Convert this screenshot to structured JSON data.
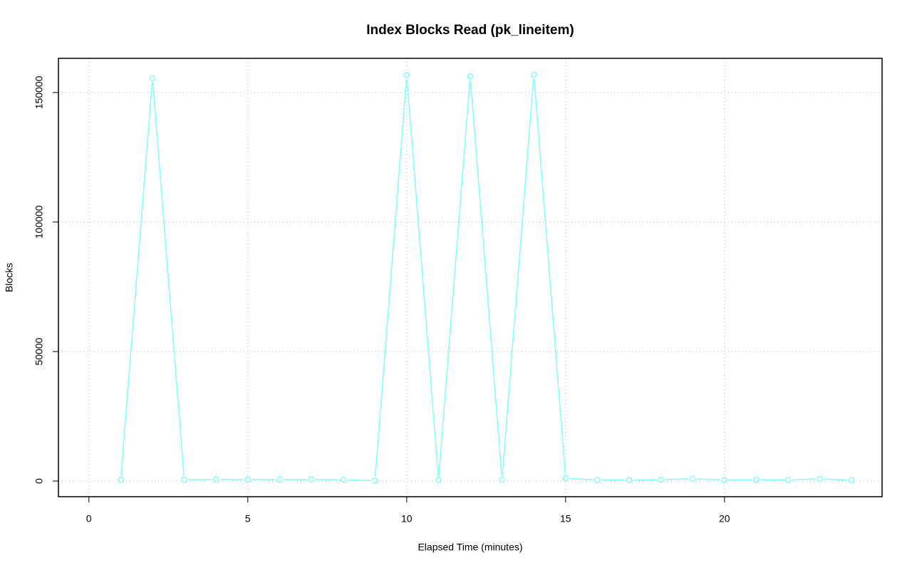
{
  "chart_data": {
    "type": "line",
    "title": "Index Blocks Read (pk_lineitem)",
    "x_label": "Elapsed Time (minutes)",
    "y_label": "Blocks",
    "x": [
      1,
      2,
      3,
      4,
      5,
      6,
      7,
      8,
      9,
      10,
      11,
      12,
      13,
      14,
      15,
      16,
      17,
      18,
      19,
      20,
      21,
      22,
      23,
      24
    ],
    "series": [
      {
        "color": "#80ffff",
        "values": [
          500,
          155500,
          500,
          600,
          600,
          600,
          600,
          500,
          100,
          156600,
          500,
          156300,
          500,
          156900,
          1100,
          400,
          400,
          500,
          900,
          400,
          500,
          400,
          900,
          300
        ]
      }
    ],
    "xlim": [
      -0.96,
      24.96
    ],
    "ylim": [
      -6044,
      163187
    ],
    "xticks": [
      0,
      5,
      10,
      15,
      20
    ],
    "yticks": [
      0,
      50000,
      100000,
      150000
    ],
    "grid": true
  }
}
